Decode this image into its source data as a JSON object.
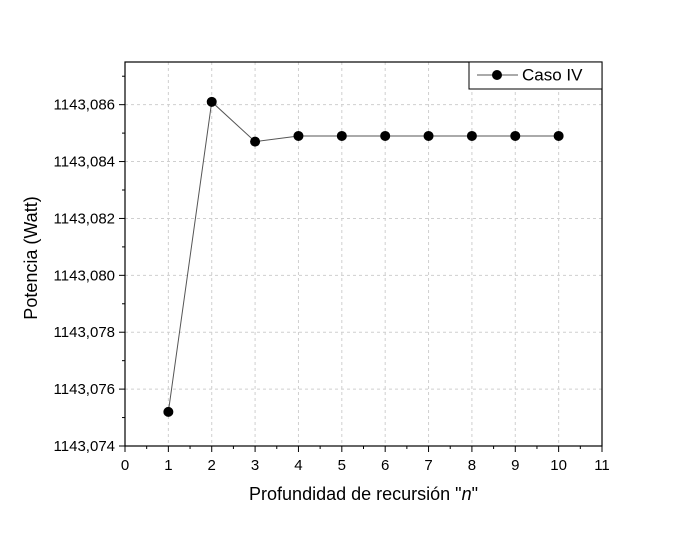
{
  "chart_data": {
    "type": "line",
    "xlabel_prefix": "Profundidad de recursión \"",
    "xlabel_var": "n",
    "xlabel_suffix": "\"",
    "ylabel": "Potencia (Watt)",
    "xlim": [
      0,
      11
    ],
    "ylim": [
      1143.074,
      1143.0875
    ],
    "xticks": [
      "0",
      "1",
      "2",
      "3",
      "4",
      "5",
      "6",
      "7",
      "8",
      "9",
      "10",
      "11"
    ],
    "yticks": [
      {
        "value": 1143.074,
        "label": "1143,074"
      },
      {
        "value": 1143.076,
        "label": "1143,076"
      },
      {
        "value": 1143.078,
        "label": "1143,078"
      },
      {
        "value": 1143.08,
        "label": "1143,080"
      },
      {
        "value": 1143.082,
        "label": "1143,082"
      },
      {
        "value": 1143.084,
        "label": "1143,084"
      },
      {
        "value": 1143.086,
        "label": "1143,086"
      }
    ],
    "grid": true,
    "legend_position": "top-right",
    "series": [
      {
        "name": "Caso IV",
        "color": "#000000",
        "line_color": "#555555",
        "x": [
          1,
          2,
          3,
          4,
          5,
          6,
          7,
          8,
          9,
          10
        ],
        "y": [
          1143.0752,
          1143.0861,
          1143.0847,
          1143.0849,
          1143.0849,
          1143.0849,
          1143.0849,
          1143.0849,
          1143.0849,
          1143.0849
        ]
      }
    ]
  }
}
